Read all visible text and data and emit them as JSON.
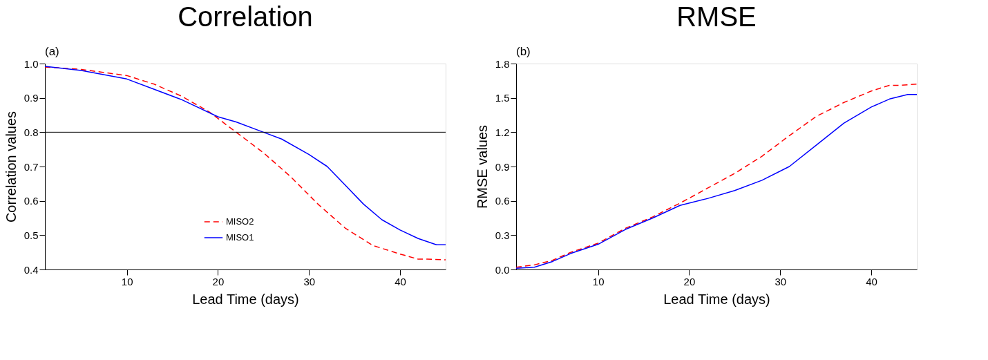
{
  "chart_data": [
    {
      "type": "line",
      "title": "Correlation",
      "annotations": [
        "(a)"
      ],
      "xlabel": "Lead Time (days)",
      "ylabel": "Correlation values",
      "xlim": [
        1,
        45
      ],
      "xticks": [
        10,
        20,
        30,
        40
      ],
      "ylim": [
        0.4,
        1.0
      ],
      "yticks": [
        0.4,
        0.5,
        0.6,
        0.7,
        0.8,
        0.9,
        {
          "value": 1.0,
          "label": "1.0"
        }
      ],
      "grid": false,
      "legend": "bottom",
      "marker": "none",
      "ref_lines": [
        {
          "axis": "y",
          "value": 0.8,
          "label": null,
          "color": "#000000",
          "line_style": "solid"
        }
      ],
      "series": [
        {
          "name": "MISO2",
          "color": "#ff0000",
          "line_style": "dashed",
          "x": [
            1,
            5,
            10,
            13,
            16,
            19,
            22,
            25,
            28,
            31,
            34,
            37,
            40,
            42,
            43,
            45
          ],
          "values": [
            0.99,
            0.983,
            0.965,
            0.94,
            0.905,
            0.86,
            0.8,
            0.74,
            0.67,
            0.59,
            0.52,
            0.47,
            0.445,
            0.43,
            0.43,
            0.428
          ]
        },
        {
          "name": "MISO1",
          "color": "#0000ff",
          "line_style": "solid",
          "x": [
            1,
            5,
            10,
            13,
            16,
            20,
            22,
            25,
            27,
            30,
            32,
            34,
            36,
            38,
            40,
            42,
            44,
            45
          ],
          "values": [
            0.992,
            0.98,
            0.955,
            0.925,
            0.895,
            0.845,
            0.83,
            0.8,
            0.78,
            0.735,
            0.7,
            0.645,
            0.59,
            0.545,
            0.515,
            0.49,
            0.472,
            0.472
          ]
        }
      ]
    },
    {
      "type": "line",
      "title": "RMSE",
      "annotations": [
        "(b)"
      ],
      "xlabel": "Lead Time (days)",
      "ylabel": "RMSE values",
      "xlim": [
        1,
        45
      ],
      "xticks": [
        10,
        20,
        30,
        40
      ],
      "ylim": [
        0.0,
        1.8
      ],
      "yticks": [
        {
          "value": 0.0,
          "label": "0.0"
        },
        0.3,
        0.6,
        0.9,
        1.2,
        1.5,
        1.8
      ],
      "grid": false,
      "legend": "bottom",
      "marker": "none",
      "series": [
        {
          "name": "MISO2",
          "color": "#ff0000",
          "line_style": "dashed",
          "x": [
            1,
            3,
            5,
            7,
            10,
            13,
            16,
            19,
            22,
            25,
            28,
            31,
            34,
            37,
            40,
            42,
            43,
            45
          ],
          "values": [
            0.02,
            0.04,
            0.08,
            0.15,
            0.23,
            0.36,
            0.46,
            0.58,
            0.71,
            0.84,
            0.99,
            1.17,
            1.34,
            1.46,
            1.56,
            1.61,
            1.61,
            1.62
          ]
        },
        {
          "name": "MISO1",
          "color": "#0000ff",
          "line_style": "solid",
          "x": [
            1,
            3,
            5,
            7,
            10,
            13,
            16,
            19,
            22,
            25,
            28,
            31,
            34,
            37,
            40,
            42,
            44,
            45
          ],
          "values": [
            0.01,
            0.02,
            0.07,
            0.14,
            0.22,
            0.35,
            0.45,
            0.56,
            0.62,
            0.69,
            0.78,
            0.9,
            1.09,
            1.28,
            1.42,
            1.49,
            1.53,
            1.53
          ]
        }
      ]
    }
  ]
}
